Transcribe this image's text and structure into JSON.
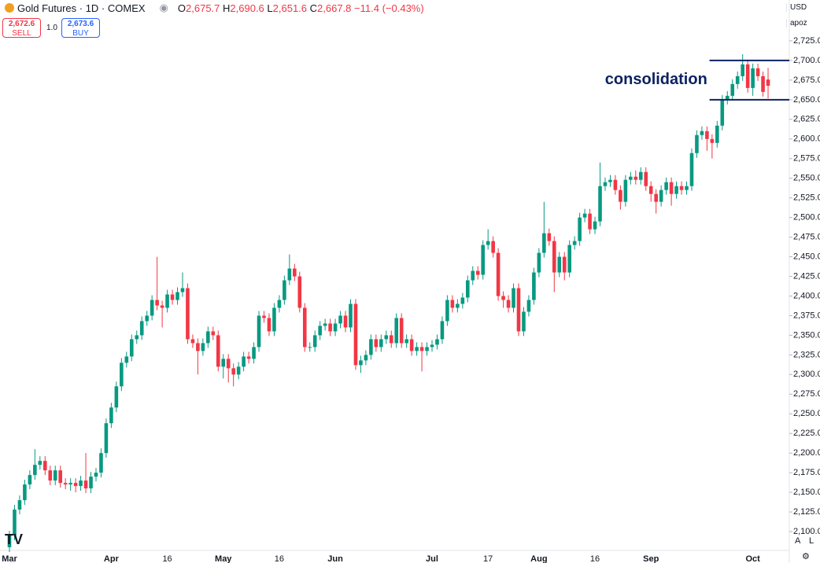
{
  "header": {
    "title": "Gold Futures · 1D · COMEX",
    "ohlc": [
      {
        "key": "O",
        "value": "2,675.7"
      },
      {
        "key": "H",
        "value": "2,690.6"
      },
      {
        "key": "L",
        "value": "2,651.6"
      },
      {
        "key": "C",
        "value": "2,667.8"
      }
    ],
    "change": "−11.4 (−0.43%)"
  },
  "trade": {
    "sell_price": "2,672.6",
    "sell": "SELL",
    "quantity": "1.0",
    "buy_price": "2,673.6",
    "buy": "BUY"
  },
  "currency": "USD",
  "scale_menu": "apoz",
  "scale_buttons": [
    "A",
    "L"
  ],
  "chart_data": {
    "type": "candlestick",
    "categories": [
      "Mar",
      null,
      null,
      null,
      null,
      null,
      null,
      null,
      null,
      null,
      null,
      null,
      null,
      null,
      null,
      null,
      null,
      null,
      null,
      null,
      "Apr",
      null,
      null,
      null,
      null,
      null,
      null,
      null,
      null,
      null,
      null,
      "16",
      null,
      null,
      null,
      null,
      null,
      null,
      null,
      null,
      null,
      null,
      "May",
      null,
      null,
      null,
      null,
      null,
      null,
      null,
      null,
      null,
      null,
      "16",
      null,
      null,
      null,
      null,
      null,
      null,
      null,
      null,
      null,
      null,
      "Jun",
      null,
      null,
      null,
      null,
      null,
      null,
      null,
      null,
      null,
      null,
      null,
      null,
      null,
      null,
      null,
      null,
      null,
      null,
      "Jul",
      null,
      null,
      null,
      null,
      null,
      null,
      null,
      null,
      null,
      null,
      "17",
      null,
      null,
      null,
      null,
      null,
      null,
      null,
      null,
      null,
      "Aug",
      null,
      null,
      null,
      null,
      null,
      null,
      null,
      null,
      null,
      null,
      "16",
      null,
      null,
      null,
      null,
      null,
      null,
      null,
      null,
      null,
      null,
      "Sep",
      null,
      null,
      null,
      null,
      null,
      null,
      null,
      null,
      null,
      null,
      null,
      null,
      null,
      null,
      null,
      null,
      null,
      null,
      null,
      "Oct",
      null,
      null,
      null
    ],
    "open": [
      2080,
      2095,
      2128,
      2140,
      2160,
      2172,
      2185,
      2190,
      2178,
      2165,
      2178,
      2162,
      2160,
      2162,
      2158,
      2165,
      2155,
      2170,
      2175,
      2200,
      2238,
      2258,
      2285,
      2315,
      2323,
      2345,
      2350,
      2368,
      2375,
      2395,
      2388,
      2385,
      2402,
      2395,
      2405,
      2410,
      2345,
      2340,
      2330,
      2340,
      2355,
      2350,
      2310,
      2320,
      2308,
      2300,
      2310,
      2323,
      2320,
      2335,
      2375,
      2372,
      2355,
      2385,
      2395,
      2420,
      2435,
      2425,
      2385,
      2335,
      2335,
      2350,
      2362,
      2365,
      2355,
      2365,
      2375,
      2360,
      2390,
      2312,
      2318,
      2325,
      2345,
      2335,
      2345,
      2350,
      2340,
      2372,
      2340,
      2345,
      2330,
      2335,
      2330,
      2335,
      2338,
      2345,
      2368,
      2395,
      2385,
      2390,
      2398,
      2420,
      2432,
      2427,
      2465,
      2470,
      2455,
      2400,
      2395,
      2385,
      2410,
      2355,
      2380,
      2395,
      2430,
      2455,
      2480,
      2470,
      2430,
      2450,
      2430,
      2465,
      2470,
      2500,
      2505,
      2485,
      2495,
      2540,
      2545,
      2548,
      2535,
      2520,
      2548,
      2552,
      2548,
      2558,
      2540,
      2530,
      2520,
      2535,
      2545,
      2530,
      2540,
      2535,
      2540,
      2582,
      2605,
      2610,
      2600,
      2595,
      2617,
      2650,
      2655,
      2670,
      2680,
      2695,
      2665,
      2690,
      2680,
      2675.7
    ],
    "high": [
      2101,
      2134,
      2146,
      2166,
      2178,
      2205,
      2196,
      2196,
      2184,
      2184,
      2184,
      2168,
      2168,
      2168,
      2171,
      2200,
      2176,
      2181,
      2206,
      2244,
      2264,
      2291,
      2321,
      2329,
      2351,
      2356,
      2374,
      2381,
      2401,
      2450,
      2394,
      2408,
      2408,
      2411,
      2430,
      2416,
      2351,
      2346,
      2346,
      2361,
      2361,
      2356,
      2326,
      2326,
      2314,
      2316,
      2329,
      2329,
      2341,
      2381,
      2381,
      2378,
      2391,
      2401,
      2426,
      2453,
      2441,
      2431,
      2391,
      2341,
      2356,
      2368,
      2371,
      2371,
      2371,
      2381,
      2381,
      2396,
      2396,
      2324,
      2331,
      2351,
      2351,
      2351,
      2356,
      2356,
      2378,
      2378,
      2351,
      2351,
      2341,
      2341,
      2341,
      2344,
      2351,
      2374,
      2401,
      2401,
      2396,
      2404,
      2426,
      2438,
      2438,
      2471,
      2485,
      2476,
      2461,
      2406,
      2401,
      2416,
      2416,
      2386,
      2401,
      2436,
      2461,
      2520,
      2486,
      2476,
      2456,
      2456,
      2471,
      2476,
      2506,
      2511,
      2511,
      2501,
      2570,
      2551,
      2554,
      2554,
      2541,
      2554,
      2558,
      2560,
      2564,
      2564,
      2546,
      2536,
      2541,
      2551,
      2551,
      2546,
      2546,
      2546,
      2588,
      2611,
      2616,
      2616,
      2606,
      2623,
      2656,
      2661,
      2676,
      2686,
      2708,
      2701,
      2696,
      2696,
      2686,
      2690.6
    ],
    "low": [
      2074,
      2089,
      2122,
      2134,
      2154,
      2166,
      2179,
      2172,
      2159,
      2159,
      2156,
      2154,
      2152,
      2150,
      2152,
      2149,
      2149,
      2164,
      2169,
      2194,
      2232,
      2252,
      2279,
      2309,
      2317,
      2339,
      2344,
      2362,
      2369,
      2382,
      2360,
      2379,
      2389,
      2389,
      2399,
      2339,
      2334,
      2300,
      2324,
      2334,
      2344,
      2304,
      2295,
      2290,
      2285,
      2294,
      2304,
      2314,
      2314,
      2329,
      2366,
      2349,
      2349,
      2379,
      2389,
      2414,
      2419,
      2379,
      2329,
      2329,
      2329,
      2344,
      2356,
      2349,
      2349,
      2359,
      2354,
      2354,
      2306,
      2302,
      2312,
      2319,
      2329,
      2329,
      2339,
      2334,
      2334,
      2334,
      2334,
      2324,
      2324,
      2304,
      2324,
      2329,
      2332,
      2339,
      2362,
      2379,
      2379,
      2384,
      2392,
      2414,
      2421,
      2421,
      2459,
      2449,
      2394,
      2385,
      2379,
      2379,
      2349,
      2349,
      2374,
      2389,
      2424,
      2449,
      2464,
      2405,
      2424,
      2420,
      2424,
      2459,
      2464,
      2494,
      2479,
      2479,
      2489,
      2534,
      2539,
      2529,
      2510,
      2514,
      2542,
      2542,
      2542,
      2534,
      2520,
      2505,
      2514,
      2529,
      2515,
      2524,
      2529,
      2529,
      2534,
      2576,
      2599,
      2585,
      2575,
      2589,
      2611,
      2644,
      2649,
      2664,
      2674,
      2659,
      2655,
      2674,
      2654,
      2651.6
    ],
    "close": [
      2095,
      2128,
      2140,
      2160,
      2172,
      2185,
      2190,
      2178,
      2165,
      2178,
      2162,
      2160,
      2162,
      2158,
      2165,
      2155,
      2170,
      2175,
      2200,
      2238,
      2258,
      2285,
      2315,
      2323,
      2345,
      2350,
      2368,
      2375,
      2395,
      2388,
      2385,
      2402,
      2395,
      2405,
      2410,
      2345,
      2340,
      2330,
      2340,
      2355,
      2350,
      2310,
      2320,
      2308,
      2300,
      2310,
      2323,
      2320,
      2335,
      2375,
      2372,
      2355,
      2385,
      2395,
      2420,
      2435,
      2425,
      2385,
      2335,
      2335,
      2350,
      2362,
      2365,
      2355,
      2365,
      2375,
      2360,
      2390,
      2312,
      2318,
      2325,
      2345,
      2335,
      2345,
      2350,
      2340,
      2372,
      2340,
      2345,
      2330,
      2335,
      2330,
      2335,
      2338,
      2345,
      2368,
      2395,
      2385,
      2390,
      2398,
      2420,
      2432,
      2427,
      2465,
      2470,
      2455,
      2400,
      2395,
      2385,
      2410,
      2355,
      2380,
      2395,
      2430,
      2455,
      2480,
      2470,
      2430,
      2450,
      2430,
      2465,
      2470,
      2500,
      2505,
      2485,
      2495,
      2540,
      2545,
      2548,
      2535,
      2520,
      2548,
      2552,
      2548,
      2558,
      2540,
      2530,
      2520,
      2535,
      2545,
      2530,
      2540,
      2535,
      2540,
      2582,
      2605,
      2610,
      2600,
      2595,
      2617,
      2650,
      2655,
      2670,
      2680,
      2695,
      2665,
      2690,
      2680,
      2660,
      2667.8
    ],
    "up_color": "#089981",
    "down_color": "#f23645",
    "ylim": [
      2076,
      2755
    ],
    "yticks": [
      {
        "value": 2100,
        "label": "2,100.0"
      },
      {
        "value": 2125,
        "label": "2,125.0"
      },
      {
        "value": 2150,
        "label": "2,150.0"
      },
      {
        "value": 2175,
        "label": "2,175.0"
      },
      {
        "value": 2200,
        "label": "2,200.0"
      },
      {
        "value": 2225,
        "label": "2,225.0"
      },
      {
        "value": 2250,
        "label": "2,250.0"
      },
      {
        "value": 2275,
        "label": "2,275.0"
      },
      {
        "value": 2300,
        "label": "2,300.0"
      },
      {
        "value": 2325,
        "label": "2,325.0"
      },
      {
        "value": 2350,
        "label": "2,350.0"
      },
      {
        "value": 2375,
        "label": "2,375.0"
      },
      {
        "value": 2400,
        "label": "2,400.0"
      },
      {
        "value": 2425,
        "label": "2,425.0"
      },
      {
        "value": 2450,
        "label": "2,450.0"
      },
      {
        "value": 2475,
        "label": "2,475.0"
      },
      {
        "value": 2500,
        "label": "2,500.0"
      },
      {
        "value": 2525,
        "label": "2,525.0"
      },
      {
        "value": 2550,
        "label": "2,550.0"
      },
      {
        "value": 2575,
        "label": "2,575.0"
      },
      {
        "value": 2600,
        "label": "2,600.0"
      },
      {
        "value": 2625,
        "label": "2,625.0"
      },
      {
        "value": 2650,
        "label": "2,650.0"
      },
      {
        "value": 2675,
        "label": "2,675.0"
      },
      {
        "value": 2700,
        "label": "2,700.0"
      },
      {
        "value": 2725,
        "label": "2,725.0"
      }
    ],
    "annotation": {
      "text": "consolidation",
      "levels": [
        2700,
        2650
      ],
      "color": "#0d2260"
    }
  }
}
